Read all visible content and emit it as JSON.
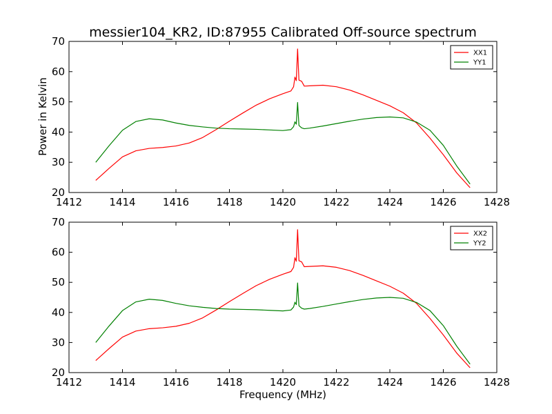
{
  "title": "messier104_KR2, ID:87955 Calibrated Off-source spectrum",
  "colors": {
    "xx": "#ff0000",
    "yy": "#008000"
  },
  "chart_data": [
    {
      "type": "line",
      "ylabel": "Power in Kelvin",
      "xlabel": "",
      "xlim": [
        1412,
        1428
      ],
      "ylim": [
        20,
        70
      ],
      "xticks": [
        1412,
        1414,
        1416,
        1418,
        1420,
        1422,
        1424,
        1426,
        1428
      ],
      "yticks": [
        20,
        30,
        40,
        50,
        60,
        70
      ],
      "legend_position": "top-right",
      "series": [
        {
          "name": "XX1",
          "color": "#ff0000",
          "points": [
            [
              1413.0,
              24.0
            ],
            [
              1413.5,
              28.0
            ],
            [
              1414.0,
              31.8
            ],
            [
              1414.5,
              33.8
            ],
            [
              1415.0,
              34.6
            ],
            [
              1415.5,
              34.9
            ],
            [
              1416.0,
              35.4
            ],
            [
              1416.5,
              36.4
            ],
            [
              1417.0,
              38.2
            ],
            [
              1417.5,
              40.8
            ],
            [
              1418.0,
              43.6
            ],
            [
              1418.5,
              46.3
            ],
            [
              1419.0,
              48.9
            ],
            [
              1419.5,
              51.0
            ],
            [
              1420.0,
              52.7
            ],
            [
              1420.3,
              53.6
            ],
            [
              1420.4,
              55.0
            ],
            [
              1420.45,
              58.2
            ],
            [
              1420.5,
              57.0
            ],
            [
              1420.55,
              67.5
            ],
            [
              1420.6,
              57.2
            ],
            [
              1420.7,
              56.8
            ],
            [
              1420.8,
              55.2
            ],
            [
              1421.0,
              55.3
            ],
            [
              1421.5,
              55.5
            ],
            [
              1422.0,
              55.0
            ],
            [
              1422.5,
              53.9
            ],
            [
              1423.0,
              52.3
            ],
            [
              1423.5,
              50.5
            ],
            [
              1424.0,
              48.7
            ],
            [
              1424.5,
              46.4
            ],
            [
              1425.0,
              43.0
            ],
            [
              1425.5,
              38.0
            ],
            [
              1426.0,
              32.5
            ],
            [
              1426.5,
              26.5
            ],
            [
              1427.0,
              21.6
            ]
          ]
        },
        {
          "name": "YY1",
          "color": "#008000",
          "points": [
            [
              1413.0,
              30.0
            ],
            [
              1413.5,
              35.5
            ],
            [
              1414.0,
              40.6
            ],
            [
              1414.5,
              43.5
            ],
            [
              1415.0,
              44.4
            ],
            [
              1415.5,
              44.0
            ],
            [
              1416.0,
              43.0
            ],
            [
              1416.5,
              42.2
            ],
            [
              1417.0,
              41.7
            ],
            [
              1417.5,
              41.3
            ],
            [
              1418.0,
              41.1
            ],
            [
              1418.5,
              41.0
            ],
            [
              1419.0,
              40.9
            ],
            [
              1419.5,
              40.7
            ],
            [
              1420.0,
              40.5
            ],
            [
              1420.3,
              40.8
            ],
            [
              1420.4,
              41.8
            ],
            [
              1420.45,
              43.4
            ],
            [
              1420.5,
              42.6
            ],
            [
              1420.55,
              49.8
            ],
            [
              1420.6,
              42.2
            ],
            [
              1420.7,
              41.4
            ],
            [
              1420.8,
              41.1
            ],
            [
              1421.0,
              41.3
            ],
            [
              1421.5,
              42.0
            ],
            [
              1422.0,
              42.8
            ],
            [
              1422.5,
              43.6
            ],
            [
              1423.0,
              44.3
            ],
            [
              1423.5,
              44.8
            ],
            [
              1424.0,
              45.0
            ],
            [
              1424.5,
              44.7
            ],
            [
              1425.0,
              43.3
            ],
            [
              1425.5,
              40.6
            ],
            [
              1426.0,
              35.6
            ],
            [
              1426.5,
              28.8
            ],
            [
              1427.0,
              22.8
            ]
          ]
        }
      ]
    },
    {
      "type": "line",
      "ylabel": "",
      "xlabel": "Frequency (MHz)",
      "xlim": [
        1412,
        1428
      ],
      "ylim": [
        20,
        70
      ],
      "xticks": [
        1412,
        1414,
        1416,
        1418,
        1420,
        1422,
        1424,
        1426,
        1428
      ],
      "yticks": [
        20,
        30,
        40,
        50,
        60,
        70
      ],
      "legend_position": "top-right",
      "series": [
        {
          "name": "XX2",
          "color": "#ff0000",
          "points": [
            [
              1413.0,
              24.0
            ],
            [
              1413.5,
              28.0
            ],
            [
              1414.0,
              31.8
            ],
            [
              1414.5,
              33.8
            ],
            [
              1415.0,
              34.6
            ],
            [
              1415.5,
              34.9
            ],
            [
              1416.0,
              35.4
            ],
            [
              1416.5,
              36.4
            ],
            [
              1417.0,
              38.2
            ],
            [
              1417.5,
              40.8
            ],
            [
              1418.0,
              43.6
            ],
            [
              1418.5,
              46.3
            ],
            [
              1419.0,
              48.9
            ],
            [
              1419.5,
              51.0
            ],
            [
              1420.0,
              52.7
            ],
            [
              1420.3,
              53.6
            ],
            [
              1420.4,
              55.0
            ],
            [
              1420.45,
              58.2
            ],
            [
              1420.5,
              57.0
            ],
            [
              1420.55,
              67.5
            ],
            [
              1420.6,
              57.2
            ],
            [
              1420.7,
              56.8
            ],
            [
              1420.8,
              55.2
            ],
            [
              1421.0,
              55.3
            ],
            [
              1421.5,
              55.5
            ],
            [
              1422.0,
              55.0
            ],
            [
              1422.5,
              53.9
            ],
            [
              1423.0,
              52.3
            ],
            [
              1423.5,
              50.5
            ],
            [
              1424.0,
              48.7
            ],
            [
              1424.5,
              46.4
            ],
            [
              1425.0,
              43.0
            ],
            [
              1425.5,
              38.0
            ],
            [
              1426.0,
              32.5
            ],
            [
              1426.5,
              26.5
            ],
            [
              1427.0,
              21.6
            ]
          ]
        },
        {
          "name": "YY2",
          "color": "#008000",
          "points": [
            [
              1413.0,
              30.0
            ],
            [
              1413.5,
              35.5
            ],
            [
              1414.0,
              40.6
            ],
            [
              1414.5,
              43.5
            ],
            [
              1415.0,
              44.4
            ],
            [
              1415.5,
              44.0
            ],
            [
              1416.0,
              43.0
            ],
            [
              1416.5,
              42.2
            ],
            [
              1417.0,
              41.7
            ],
            [
              1417.5,
              41.3
            ],
            [
              1418.0,
              41.1
            ],
            [
              1418.5,
              41.0
            ],
            [
              1419.0,
              40.9
            ],
            [
              1419.5,
              40.7
            ],
            [
              1420.0,
              40.5
            ],
            [
              1420.3,
              40.8
            ],
            [
              1420.4,
              41.8
            ],
            [
              1420.45,
              43.4
            ],
            [
              1420.5,
              42.6
            ],
            [
              1420.55,
              49.8
            ],
            [
              1420.6,
              42.2
            ],
            [
              1420.7,
              41.4
            ],
            [
              1420.8,
              41.1
            ],
            [
              1421.0,
              41.3
            ],
            [
              1421.5,
              42.0
            ],
            [
              1422.0,
              42.8
            ],
            [
              1422.5,
              43.6
            ],
            [
              1423.0,
              44.3
            ],
            [
              1423.5,
              44.8
            ],
            [
              1424.0,
              45.0
            ],
            [
              1424.5,
              44.7
            ],
            [
              1425.0,
              43.3
            ],
            [
              1425.5,
              40.6
            ],
            [
              1426.0,
              35.6
            ],
            [
              1426.5,
              28.8
            ],
            [
              1427.0,
              22.8
            ]
          ]
        }
      ]
    }
  ]
}
